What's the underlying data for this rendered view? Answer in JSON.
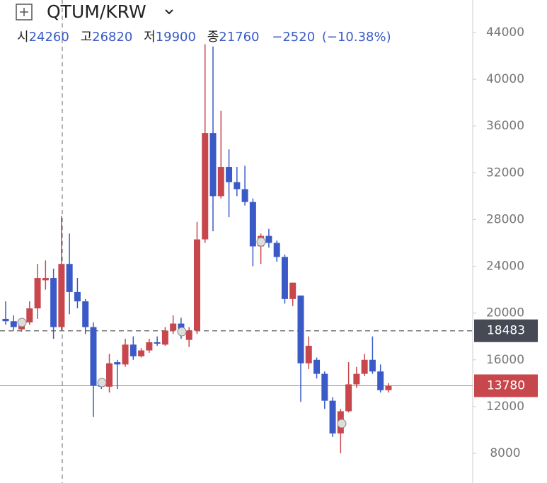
{
  "chart_data": {
    "type": "candlestick",
    "title": "QTUM/KRW",
    "info": {
      "open_label": "시",
      "open": 24260,
      "high_label": "고",
      "high": 26820,
      "low_label": "저",
      "low": 19900,
      "close_label": "종",
      "close": 21760,
      "change": -2520,
      "change_label": "−2520",
      "change_pct": -10.38,
      "change_pct_label": "(−10.38%)"
    },
    "up_color": "#c8474c",
    "down_color": "#3a5bc7",
    "open": [
      19500,
      19300,
      18600,
      19200,
      20400,
      22800,
      23000,
      18800,
      24200,
      21800,
      21000,
      18800,
      14000,
      13700,
      15800,
      15600,
      17300,
      16300,
      16800,
      17500,
      17300,
      18500,
      19100,
      17700,
      18500,
      26300,
      35400,
      30000,
      32500,
      31200,
      30600,
      29500,
      25700,
      26600,
      26000,
      24800,
      21200,
      21500,
      15700,
      16000,
      14800,
      12500,
      9700,
      11600,
      13900,
      14800,
      16000,
      15000,
      13400
    ],
    "high": [
      21000,
      19800,
      19500,
      21000,
      24200,
      24500,
      23800,
      28300,
      26800,
      23000,
      21200,
      19200,
      14200,
      16500,
      16000,
      17800,
      18000,
      17000,
      17800,
      18000,
      18800,
      19800,
      19600,
      18800,
      27800,
      43000,
      42800,
      37300,
      34000,
      32500,
      32600,
      29800,
      26800,
      27200,
      26200,
      25000,
      22600,
      21500,
      18000,
      16200,
      15000,
      12800,
      11800,
      15800,
      15400,
      16500,
      18000,
      15600,
      14000
    ],
    "low": [
      19000,
      18500,
      18400,
      19000,
      19500,
      22000,
      17800,
      18500,
      19900,
      20400,
      18200,
      11100,
      13500,
      13200,
      13500,
      15400,
      16000,
      16200,
      16600,
      17200,
      17200,
      18200,
      17800,
      17100,
      18200,
      26000,
      27000,
      29800,
      28200,
      30000,
      29200,
      24000,
      24200,
      25600,
      24400,
      20800,
      20600,
      12400,
      15200,
      14400,
      11800,
      9400,
      8000,
      11500,
      13600,
      14600,
      14800,
      13200,
      13200
    ],
    "close": [
      19300,
      18800,
      19200,
      20400,
      23000,
      23000,
      18800,
      24200,
      21800,
      21000,
      18800,
      13800,
      13700,
      15700,
      15600,
      17300,
      16300,
      16800,
      17500,
      17400,
      18500,
      19100,
      18200,
      18500,
      26300,
      35400,
      30000,
      32500,
      31200,
      30600,
      29500,
      25700,
      26600,
      26000,
      24800,
      21200,
      22600,
      15700,
      17200,
      14800,
      12500,
      9700,
      11600,
      13900,
      14800,
      16000,
      15000,
      13400,
      13780
    ],
    "ylim": [
      5460,
      46780
    ],
    "yticks": [
      8000,
      12000,
      16000,
      20000,
      24000,
      28000,
      32000,
      36000,
      40000,
      44000
    ],
    "price_lines": [
      {
        "value": 18483,
        "color": "#454a55",
        "style": "dashed"
      },
      {
        "value": 13780,
        "color": "#c8474c",
        "style": "solid"
      }
    ]
  }
}
